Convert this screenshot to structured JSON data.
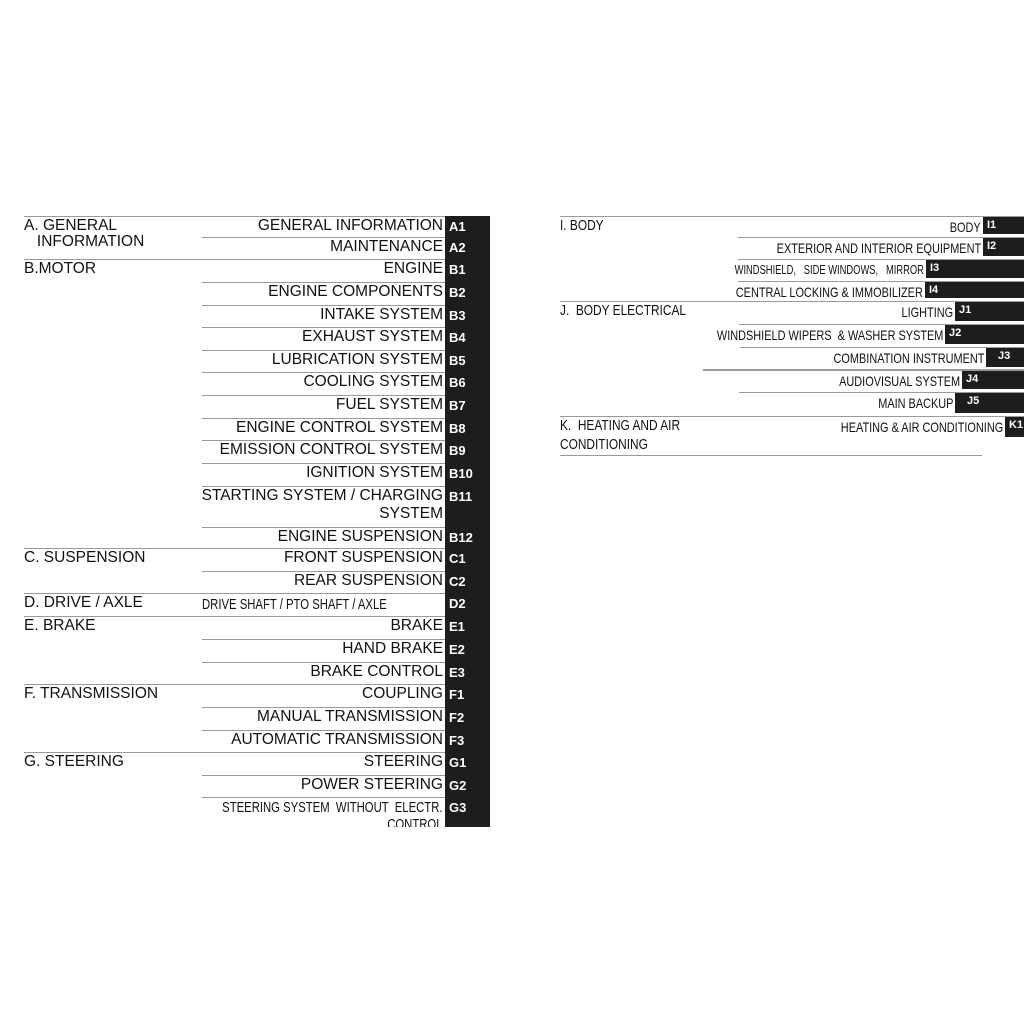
{
  "left_column": [
    {
      "section": "A. GENERAL\n   INFORMATION",
      "items": [
        {
          "label": "GENERAL INFORMATION",
          "code": "A1"
        },
        {
          "label": "MAINTENANCE",
          "code": "A2"
        }
      ]
    },
    {
      "section": "B.MOTOR",
      "items": [
        {
          "label": "ENGINE",
          "code": "B1"
        },
        {
          "label": "ENGINE COMPONENTS",
          "code": "B2"
        },
        {
          "label": "INTAKE SYSTEM",
          "code": "B3"
        },
        {
          "label": "EXHAUST SYSTEM",
          "code": "B4"
        },
        {
          "label": "LUBRICATION SYSTEM",
          "code": "B5"
        },
        {
          "label": "COOLING SYSTEM",
          "code": "B6"
        },
        {
          "label": "FUEL SYSTEM",
          "code": "B7"
        },
        {
          "label": "ENGINE CONTROL SYSTEM",
          "code": "B8"
        },
        {
          "label": "EMISSION CONTROL SYSTEM",
          "code": "B9"
        },
        {
          "label": "IGNITION SYSTEM",
          "code": "B10"
        },
        {
          "label": "STARTING SYSTEM / CHARGING\nSYSTEM",
          "code": "B11"
        },
        {
          "label": "ENGINE SUSPENSION",
          "code": "B12"
        }
      ]
    },
    {
      "section": "C. SUSPENSION",
      "items": [
        {
          "label": "FRONT SUSPENSION",
          "code": "C1"
        },
        {
          "label": "REAR SUSPENSION",
          "code": "C2"
        }
      ]
    },
    {
      "section": "D. DRIVE / AXLE",
      "items": [
        {
          "label": "DRIVE SHAFT / PTO SHAFT / AXLE",
          "code": "D2"
        }
      ]
    },
    {
      "section": "E. BRAKE",
      "items": [
        {
          "label": "BRAKE",
          "code": "E1"
        },
        {
          "label": "HAND BRAKE",
          "code": "E2"
        },
        {
          "label": "BRAKE CONTROL",
          "code": "E3"
        }
      ]
    },
    {
      "section": "F. TRANSMISSION",
      "items": [
        {
          "label": "COUPLING",
          "code": "F1"
        },
        {
          "label": "MANUAL TRANSMISSION",
          "code": "F2"
        },
        {
          "label": "AUTOMATIC TRANSMISSION",
          "code": "F3"
        }
      ]
    },
    {
      "section": "G. STEERING",
      "items": [
        {
          "label": "STEERING",
          "code": "G1"
        },
        {
          "label": "POWER STEERING",
          "code": "G2"
        },
        {
          "label": "STEERING SYSTEM  WITHOUT  ELECTR.\nCONTROL",
          "code": "G3"
        }
      ]
    }
  ],
  "right_column": [
    {
      "section": "I. BODY",
      "items": [
        {
          "label": "BODY",
          "code": "I1"
        },
        {
          "label": "EXTERIOR AND INTERIOR EQUIPMENT",
          "code": "I2"
        },
        {
          "label": "WINDSHIELD,   SIDE WINDOWS,   MIRROR",
          "code": "I3"
        },
        {
          "label": "CENTRAL LOCKING & IMMOBILIZER",
          "code": "I4"
        }
      ]
    },
    {
      "section": "J.  BODY ELECTRICAL",
      "items": [
        {
          "label": "LIGHTING",
          "code": "J1"
        },
        {
          "label": "WINDSHIELD WIPERS  & WASHER SYSTEM",
          "code": "J2"
        },
        {
          "label": "COMBINATION INSTRUMENT",
          "code": "J3"
        },
        {
          "label": "AUDIOVISUAL SYSTEM",
          "code": "J4"
        },
        {
          "label": "MAIN BACKUP",
          "code": "J5"
        }
      ]
    },
    {
      "section": "K.  HEATING AND AIR\nCONDITIONING",
      "items": [
        {
          "label": "HEATING & AIR CONDITIONING",
          "code": "K1"
        }
      ]
    }
  ]
}
